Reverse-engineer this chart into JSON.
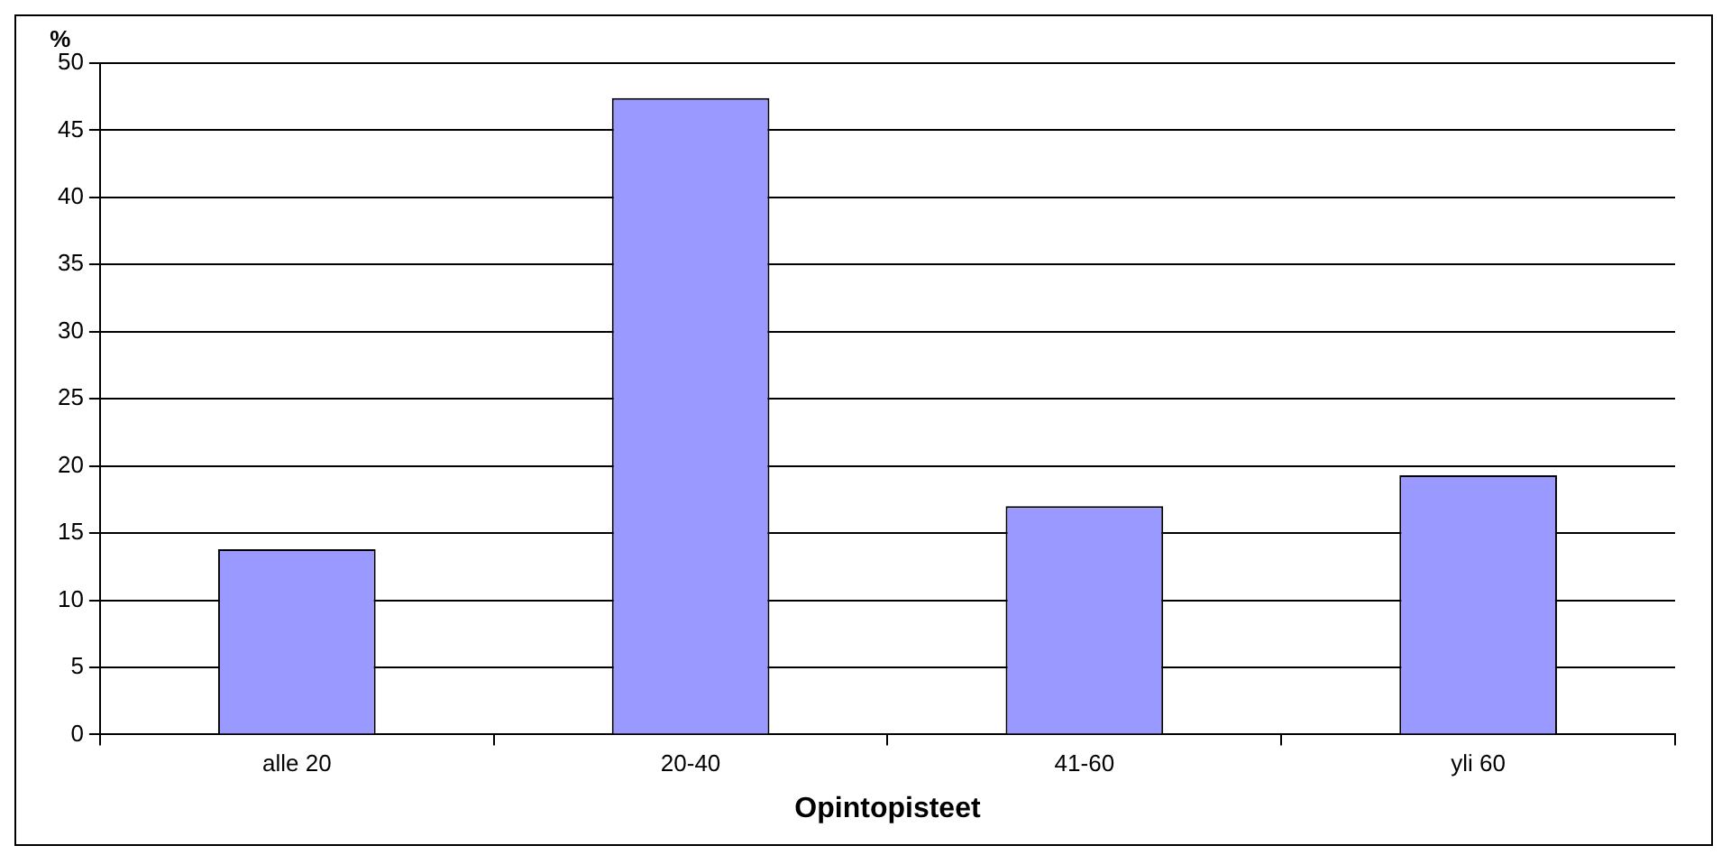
{
  "chart_data": {
    "type": "bar",
    "ylabel": "%",
    "xlabel": "Opintopisteet",
    "categories": [
      "alle 20",
      "20-40",
      "41-60",
      "yli 60"
    ],
    "values": [
      13.8,
      47.4,
      17.0,
      19.3
    ],
    "color": "#9999ff",
    "ylim": [
      0,
      50
    ],
    "yticks": [
      0,
      5,
      10,
      15,
      20,
      25,
      30,
      35,
      40,
      45,
      50
    ],
    "grid": "y",
    "legend": false
  }
}
